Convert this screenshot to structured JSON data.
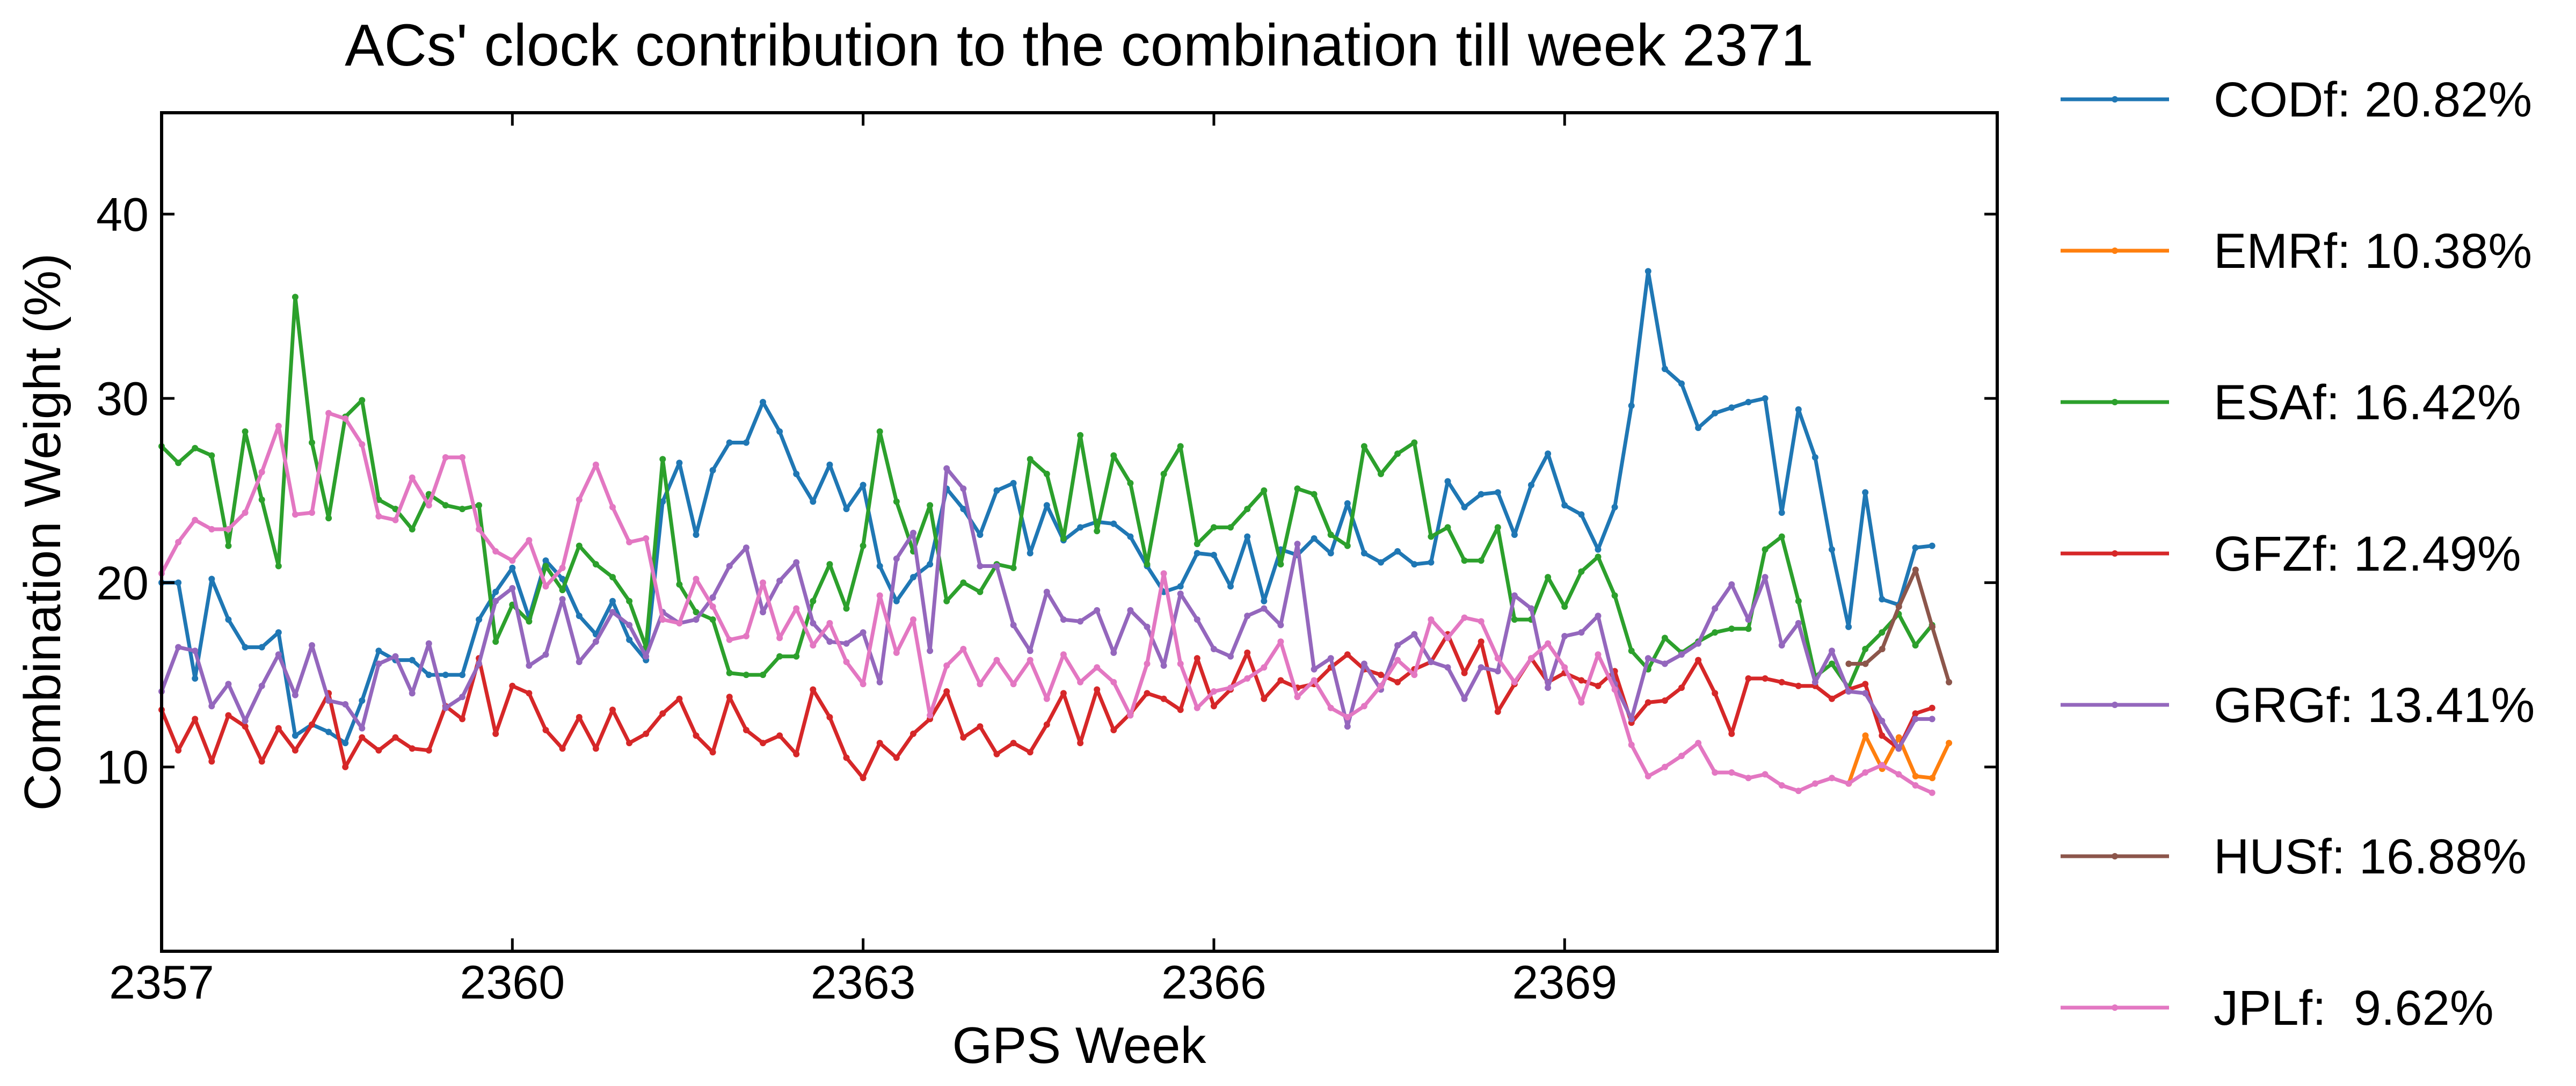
{
  "chart_data": {
    "type": "line",
    "title": "ACs' clock contribution to the combination till week 2371",
    "xlabel": "GPS Week",
    "ylabel": "Combination Weight (%)",
    "xlim": [
      2357,
      2372.7
    ],
    "ylim": [
      0,
      45.5
    ],
    "xticks": [
      2357,
      2360,
      2363,
      2366,
      2369
    ],
    "xtick_labels": [
      "2357",
      "2360",
      "2363",
      "2366",
      "2369"
    ],
    "yticks": [
      10,
      20,
      30,
      40
    ],
    "ytick_labels": [
      "10",
      "20",
      "30",
      "40"
    ],
    "grid": false,
    "legend_position": "outside-right",
    "legend": [
      "CODf: 20.82%",
      "EMRf: 10.38%",
      "ESAf: 16.42%",
      "GFZf: 12.49%",
      "GRGf: 13.41%",
      "HUSf: 16.88%",
      "JPLf:  9.62%"
    ],
    "series": [
      {
        "name": "CODf",
        "color": "#1f77b4",
        "x_start": 2357.0,
        "x_step": 0.142857,
        "values": [
          20.0,
          20.0,
          14.8,
          20.2,
          18.0,
          16.5,
          16.5,
          17.3,
          11.7,
          12.3,
          11.9,
          11.3,
          13.6,
          16.3,
          15.8,
          15.8,
          15.0,
          15.0,
          15.0,
          18.0,
          19.5,
          20.8,
          18.1,
          21.2,
          20.2,
          18.2,
          17.2,
          19.0,
          16.9,
          15.8,
          24.4,
          26.5,
          22.6,
          26.1,
          27.6,
          27.6,
          29.8,
          28.2,
          25.9,
          24.4,
          26.4,
          24.0,
          25.3,
          20.9,
          19.0,
          20.3,
          21.0,
          25.1,
          24.0,
          22.6,
          25.0,
          25.4,
          21.6,
          24.2,
          22.3,
          23.0,
          23.3,
          23.2,
          22.5,
          20.9,
          19.5,
          19.8,
          21.6,
          21.5,
          19.8,
          22.5,
          19.0,
          21.8,
          21.5,
          22.4,
          21.6,
          24.3,
          21.6,
          21.1,
          21.7,
          21.0,
          21.1,
          25.5,
          24.1,
          24.8,
          24.9,
          22.6,
          25.3,
          27.0,
          24.2,
          23.7,
          21.8,
          24.1,
          29.6,
          36.9,
          31.6,
          30.8,
          28.4,
          29.2,
          29.5,
          29.8,
          30.0,
          23.8,
          29.4,
          26.8,
          21.8,
          17.6,
          24.9,
          19.1,
          18.8,
          21.9,
          22.0
        ]
      },
      {
        "name": "EMRf",
        "color": "#ff7f0e",
        "x_start": 2371.43,
        "x_step": 0.142857,
        "values": [
          9.1,
          11.7,
          9.9,
          11.6,
          9.5,
          9.4,
          11.3
        ]
      },
      {
        "name": "ESAf",
        "color": "#2ca02c",
        "x_start": 2357.0,
        "x_step": 0.142857,
        "values": [
          27.4,
          26.5,
          27.3,
          26.9,
          22.0,
          28.2,
          24.5,
          20.9,
          35.5,
          27.6,
          23.5,
          29.0,
          29.9,
          24.5,
          24.0,
          22.9,
          24.8,
          24.2,
          24.0,
          24.2,
          16.8,
          18.8,
          17.9,
          20.9,
          19.6,
          22.0,
          21.0,
          20.3,
          19.0,
          16.5,
          26.7,
          19.9,
          18.4,
          18.0,
          15.1,
          15.0,
          15.0,
          16.0,
          16.0,
          19.0,
          21.0,
          18.6,
          22.0,
          28.2,
          24.4,
          21.7,
          24.2,
          19.0,
          20.0,
          19.5,
          21.0,
          20.8,
          26.7,
          25.9,
          22.4,
          28.0,
          22.8,
          26.9,
          25.4,
          21.0,
          25.9,
          27.4,
          22.1,
          23.0,
          23.0,
          24.0,
          25.0,
          21.0,
          25.1,
          24.8,
          22.6,
          22.0,
          27.4,
          25.9,
          27.0,
          27.6,
          22.5,
          23.0,
          21.2,
          21.2,
          23.0,
          18.0,
          18.0,
          20.3,
          18.7,
          20.6,
          21.4,
          19.3,
          16.3,
          15.3,
          17.0,
          16.2,
          16.8,
          17.3,
          17.5,
          17.5,
          21.8,
          22.5,
          19.0,
          14.9,
          15.6,
          14.3,
          16.4,
          17.3,
          18.3,
          16.6,
          17.7
        ]
      },
      {
        "name": "GFZf",
        "color": "#d62728",
        "x_start": 2357.0,
        "x_step": 0.142857,
        "values": [
          13.1,
          10.9,
          12.6,
          10.3,
          12.8,
          12.2,
          10.3,
          12.1,
          10.9,
          12.3,
          14.0,
          10.0,
          11.6,
          10.9,
          11.6,
          11.0,
          10.9,
          13.3,
          12.6,
          15.9,
          11.8,
          14.4,
          14.0,
          12.0,
          11.0,
          12.7,
          11.0,
          13.1,
          11.3,
          11.8,
          12.9,
          13.7,
          11.7,
          10.8,
          13.8,
          12.0,
          11.3,
          11.7,
          10.7,
          14.2,
          12.7,
          10.5,
          9.4,
          11.3,
          10.5,
          11.8,
          12.6,
          14.1,
          11.6,
          12.2,
          10.7,
          11.3,
          10.8,
          12.3,
          14.0,
          11.3,
          14.2,
          12.0,
          12.9,
          14.0,
          13.7,
          13.1,
          15.9,
          13.3,
          14.2,
          16.2,
          13.7,
          14.7,
          14.3,
          14.5,
          15.4,
          16.1,
          15.3,
          15.0,
          14.6,
          15.3,
          15.7,
          17.2,
          15.1,
          16.8,
          13.0,
          14.5,
          15.9,
          14.6,
          15.1,
          14.7,
          14.4,
          15.2,
          12.4,
          13.5,
          13.6,
          14.3,
          15.8,
          14.0,
          11.8,
          14.8,
          14.8,
          14.6,
          14.4,
          14.4,
          13.7,
          14.2,
          14.5,
          11.7,
          11.0,
          12.9,
          13.2
        ]
      },
      {
        "name": "GRGf",
        "color": "#9467bd",
        "x_start": 2357.0,
        "x_step": 0.142857,
        "values": [
          14.1,
          16.5,
          16.3,
          13.3,
          14.5,
          12.5,
          14.4,
          16.1,
          13.9,
          16.6,
          13.6,
          13.4,
          12.1,
          15.6,
          16.0,
          14.0,
          16.7,
          13.2,
          13.8,
          15.6,
          19.0,
          19.7,
          15.5,
          16.1,
          19.1,
          15.7,
          16.8,
          18.4,
          17.7,
          16.0,
          18.4,
          17.8,
          18.0,
          19.2,
          20.9,
          21.9,
          18.4,
          20.1,
          21.1,
          17.8,
          16.8,
          16.7,
          17.3,
          14.6,
          21.3,
          22.7,
          16.3,
          26.2,
          25.1,
          20.9,
          20.9,
          17.7,
          16.3,
          19.5,
          18.0,
          17.9,
          18.5,
          16.2,
          18.5,
          17.6,
          15.5,
          19.4,
          18.0,
          16.4,
          16.0,
          18.2,
          18.6,
          17.7,
          22.1,
          15.3,
          15.9,
          12.2,
          15.6,
          14.2,
          16.6,
          17.2,
          15.7,
          15.4,
          13.7,
          15.4,
          15.2,
          19.3,
          18.6,
          14.3,
          17.1,
          17.3,
          18.2,
          14.5,
          12.6,
          15.9,
          15.6,
          16.1,
          16.7,
          18.6,
          19.9,
          18.0,
          20.3,
          16.6,
          17.8,
          14.6,
          16.3,
          14.1,
          14.0,
          12.5,
          11.0,
          12.6,
          12.6
        ]
      },
      {
        "name": "HUSf",
        "color": "#8c564b",
        "x_start": 2371.43,
        "x_step": 0.142857,
        "values": [
          15.6,
          15.6,
          16.4,
          18.7,
          20.7,
          17.6,
          14.6
        ]
      },
      {
        "name": "JPLf",
        "color": "#e377c2",
        "x_start": 2357.0,
        "x_step": 0.142857,
        "values": [
          20.5,
          22.2,
          23.4,
          22.9,
          22.9,
          23.8,
          26.0,
          28.5,
          23.7,
          23.8,
          29.2,
          28.9,
          27.5,
          23.6,
          23.4,
          25.7,
          24.2,
          26.8,
          26.8,
          22.9,
          21.7,
          21.2,
          22.3,
          19.8,
          20.8,
          24.5,
          26.4,
          24.1,
          22.2,
          22.4,
          18.0,
          17.8,
          20.2,
          18.7,
          16.9,
          17.1,
          20.0,
          17.0,
          18.6,
          16.6,
          17.8,
          15.7,
          14.5,
          19.3,
          16.2,
          18.0,
          12.8,
          15.5,
          16.4,
          14.5,
          15.8,
          14.5,
          15.8,
          13.7,
          16.1,
          14.6,
          15.4,
          14.6,
          12.8,
          15.6,
          20.5,
          15.6,
          13.2,
          14.1,
          14.3,
          14.8,
          15.4,
          16.8,
          13.8,
          14.7,
          13.2,
          12.7,
          13.3,
          14.4,
          15.8,
          15.0,
          18.0,
          17.0,
          18.1,
          17.9,
          15.9,
          14.6,
          15.9,
          16.7,
          15.4,
          13.5,
          16.1,
          14.2,
          11.2,
          9.5,
          10.0,
          10.6,
          11.3,
          9.7,
          9.7,
          9.4,
          9.6,
          9.0,
          8.7,
          9.1,
          9.4,
          9.1,
          9.7,
          10.1,
          9.6,
          9.0,
          8.6
        ]
      }
    ]
  }
}
